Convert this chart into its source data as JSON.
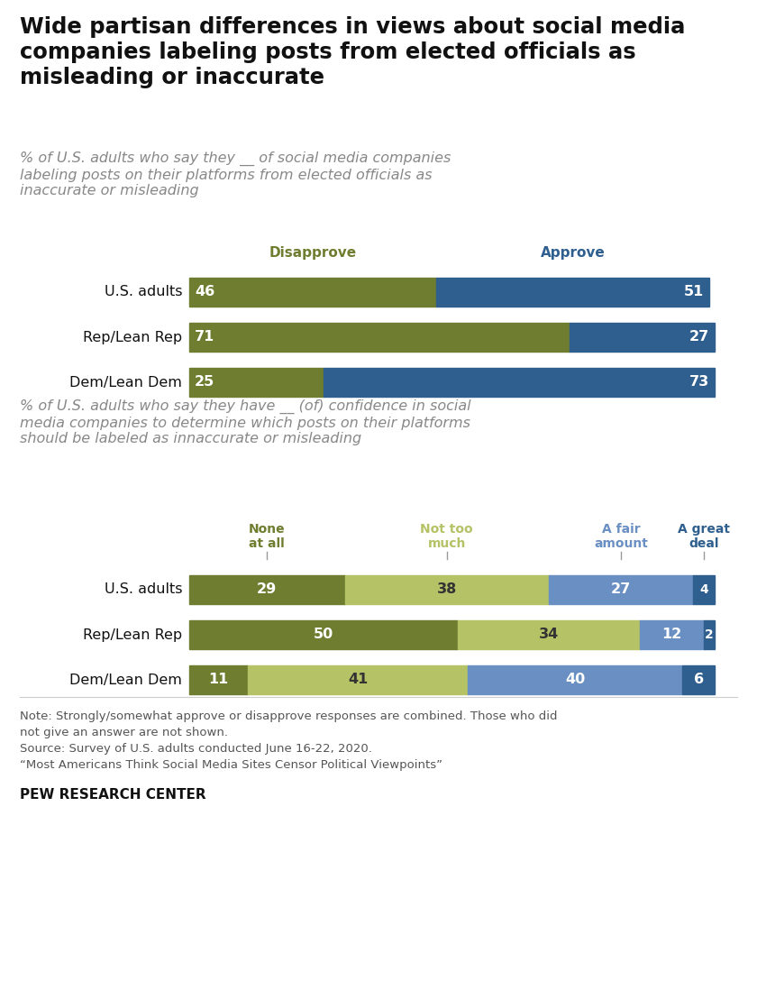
{
  "title": "Wide partisan differences in views about social media\ncompanies labeling posts from elected officials as\nmisleading or inaccurate",
  "subtitle1": "% of U.S. adults who say they __ of social media companies\nlabeling posts on their platforms from elected officials as\ninaccurate or misleading",
  "subtitle2": "% of U.S. adults who say they have __ (of) confidence in social\nmedia companies to determine which posts on their platforms\nshould be labeled as innaccurate or misleading",
  "chart1": {
    "categories": [
      "U.S. adults",
      "Rep/Lean Rep",
      "Dem/Lean Dem"
    ],
    "disapprove": [
      46,
      71,
      25
    ],
    "approve": [
      51,
      27,
      73
    ],
    "disapprove_color": "#6e7d2f",
    "approve_color": "#2e5f8e"
  },
  "chart2": {
    "categories": [
      "U.S. adults",
      "Rep/Lean Rep",
      "Dem/Lean Dem"
    ],
    "none_at_all": [
      29,
      50,
      11
    ],
    "not_too_much": [
      38,
      34,
      41
    ],
    "fair_amount": [
      27,
      12,
      40
    ],
    "great_deal": [
      4,
      2,
      6
    ],
    "none_color": "#6e7d2f",
    "not_too_color": "#b5c265",
    "fair_color": "#6a8fc2",
    "great_color": "#2e5f8e"
  },
  "note_line1": "Note: Strongly/somewhat approve or disapprove responses are combined. Those who did",
  "note_line2": "not give an answer are not shown.",
  "note_line3": "Source: Survey of U.S. adults conducted June 16-22, 2020.",
  "note_line4": "“Most Americans Think Social Media Sites Censor Political Viewpoints”",
  "source_label": "PEW RESEARCH CENTER",
  "background_color": "#ffffff"
}
